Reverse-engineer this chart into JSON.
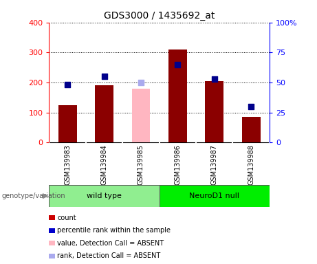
{
  "title": "GDS3000 / 1435692_at",
  "samples": [
    "GSM139983",
    "GSM139984",
    "GSM139985",
    "GSM139986",
    "GSM139987",
    "GSM139988"
  ],
  "counts": [
    125,
    190,
    180,
    310,
    205,
    85
  ],
  "percentiles": [
    48,
    55,
    50,
    65,
    53,
    30
  ],
  "absent_flags": [
    false,
    false,
    true,
    false,
    false,
    false
  ],
  "ylim_left": [
    0,
    400
  ],
  "ylim_right": [
    0,
    100
  ],
  "left_ticks": [
    0,
    100,
    200,
    300,
    400
  ],
  "right_ticks": [
    0,
    25,
    50,
    75,
    100
  ],
  "right_tick_labels": [
    "0",
    "25",
    "50",
    "75",
    "100%"
  ],
  "bar_color_present": "#8B0000",
  "bar_color_absent": "#FFB6C1",
  "dot_color_present": "#00008B",
  "dot_color_absent": "#AAAAEE",
  "group1_label": "wild type",
  "group2_label": "NeuroD1 null",
  "group1_color": "#90EE90",
  "group2_color": "#00EE00",
  "genotype_label": "genotype/variation",
  "legend_items": [
    {
      "label": "count",
      "color": "#CC0000"
    },
    {
      "label": "percentile rank within the sample",
      "color": "#0000CC"
    },
    {
      "label": "value, Detection Call = ABSENT",
      "color": "#FFB6C1"
    },
    {
      "label": "rank, Detection Call = ABSENT",
      "color": "#AAAAEE"
    }
  ],
  "bar_width": 0.5,
  "dot_size": 40,
  "sample_area_color": "#C8C8C8",
  "plot_bg_color": "#FFFFFF",
  "title_fontsize": 10
}
